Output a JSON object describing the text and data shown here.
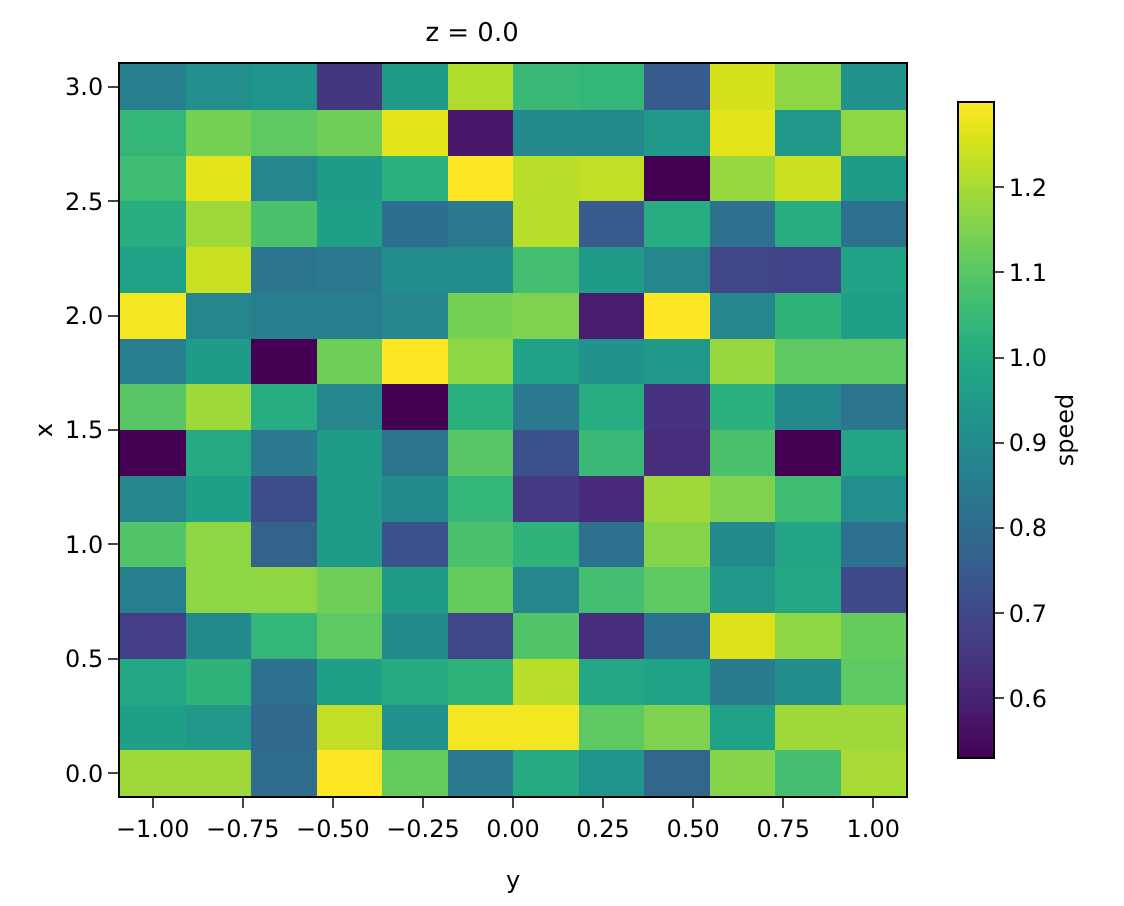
{
  "chart_data": {
    "type": "heatmap",
    "title": "z = 0.0",
    "xlabel": "y",
    "ylabel": "x",
    "clabel": "speed",
    "x": [
      -1.0,
      -0.8182,
      -0.6364,
      -0.4545,
      -0.2727,
      -0.0909,
      0.0909,
      0.2727,
      0.4545,
      0.6364,
      0.8182,
      1.0
    ],
    "y": [
      3.0,
      2.8,
      2.6,
      2.4,
      2.2,
      2.0,
      1.8,
      1.6,
      1.4,
      1.2,
      1.0,
      0.8,
      0.6,
      0.4,
      0.2,
      0.0
    ],
    "cells": [
      [
        0.86,
        0.91,
        0.93,
        0.65,
        0.95,
        1.21,
        1.05,
        1.04,
        0.75,
        1.25,
        1.17,
        0.92
      ],
      [
        1.04,
        1.14,
        1.11,
        1.13,
        1.27,
        0.58,
        0.89,
        0.89,
        0.94,
        1.27,
        0.94,
        1.17
      ],
      [
        1.06,
        1.27,
        0.88,
        0.95,
        1.02,
        1.3,
        1.22,
        1.23,
        0.53,
        1.18,
        1.24,
        0.95
      ],
      [
        1.01,
        1.19,
        1.08,
        0.96,
        0.81,
        0.84,
        1.22,
        0.75,
        1.01,
        0.82,
        1.01,
        0.82
      ],
      [
        0.97,
        1.24,
        0.83,
        0.84,
        0.9,
        0.9,
        1.07,
        0.95,
        0.88,
        0.69,
        0.68,
        0.97
      ],
      [
        1.29,
        0.88,
        0.86,
        0.86,
        0.88,
        1.14,
        1.15,
        0.59,
        1.3,
        0.88,
        1.03,
        0.96
      ],
      [
        0.86,
        0.95,
        0.53,
        1.13,
        1.3,
        1.17,
        0.97,
        0.92,
        0.94,
        1.18,
        1.11,
        1.11
      ],
      [
        1.1,
        1.19,
        1.01,
        0.88,
        0.53,
        1.02,
        0.84,
        1.01,
        0.64,
        1.02,
        0.89,
        0.83
      ],
      [
        0.53,
        1.0,
        0.84,
        0.95,
        0.83,
        1.1,
        0.72,
        1.05,
        0.63,
        1.08,
        0.53,
        0.98
      ],
      [
        0.88,
        0.96,
        0.71,
        0.95,
        0.89,
        1.04,
        0.66,
        0.62,
        1.19,
        1.15,
        1.06,
        0.91
      ],
      [
        1.09,
        1.17,
        0.77,
        0.95,
        0.72,
        1.08,
        1.03,
        0.82,
        1.16,
        0.89,
        0.98,
        0.82
      ],
      [
        0.86,
        1.17,
        1.17,
        1.13,
        0.95,
        1.12,
        0.88,
        1.07,
        1.11,
        0.94,
        0.99,
        0.7
      ],
      [
        0.67,
        0.89,
        1.04,
        1.11,
        0.89,
        0.69,
        1.09,
        0.63,
        0.82,
        1.26,
        1.17,
        1.12
      ],
      [
        0.99,
        1.03,
        0.82,
        0.96,
        1.0,
        1.03,
        1.22,
        0.99,
        0.97,
        0.85,
        0.9,
        1.11
      ],
      [
        0.96,
        0.94,
        0.79,
        1.23,
        0.92,
        1.29,
        1.29,
        1.11,
        1.15,
        0.97,
        1.19,
        1.19
      ],
      [
        1.19,
        1.19,
        0.8,
        1.3,
        1.12,
        0.84,
        1.0,
        0.93,
        0.78,
        1.16,
        1.07,
        1.2
      ]
    ],
    "xlim": [
      -1.0909,
      1.0909
    ],
    "ylim": [
      -0.1,
      3.1
    ],
    "xticks": [
      {
        "value": -1,
        "label": "−1.00"
      },
      {
        "value": -0.75,
        "label": "−0.75"
      },
      {
        "value": -0.5,
        "label": "−0.50"
      },
      {
        "value": -0.25,
        "label": "−0.25"
      },
      {
        "value": 0,
        "label": "0.00"
      },
      {
        "value": 0.25,
        "label": "0.25"
      },
      {
        "value": 0.5,
        "label": "0.50"
      },
      {
        "value": 0.75,
        "label": "0.75"
      },
      {
        "value": 1,
        "label": "1.00"
      }
    ],
    "yticks": [
      {
        "value": 0,
        "label": "0.0"
      },
      {
        "value": 0.5,
        "label": "0.5"
      },
      {
        "value": 1,
        "label": "1.0"
      },
      {
        "value": 1.5,
        "label": "1.5"
      },
      {
        "value": 2,
        "label": "2.0"
      },
      {
        "value": 2.5,
        "label": "2.5"
      },
      {
        "value": 3,
        "label": "3.0"
      }
    ],
    "clim": [
      0.53,
      1.3
    ],
    "cticks": [
      0.6,
      0.7,
      0.8,
      0.9,
      {
        "value": 1,
        "label": "1.0"
      },
      1.1,
      1.2
    ]
  }
}
